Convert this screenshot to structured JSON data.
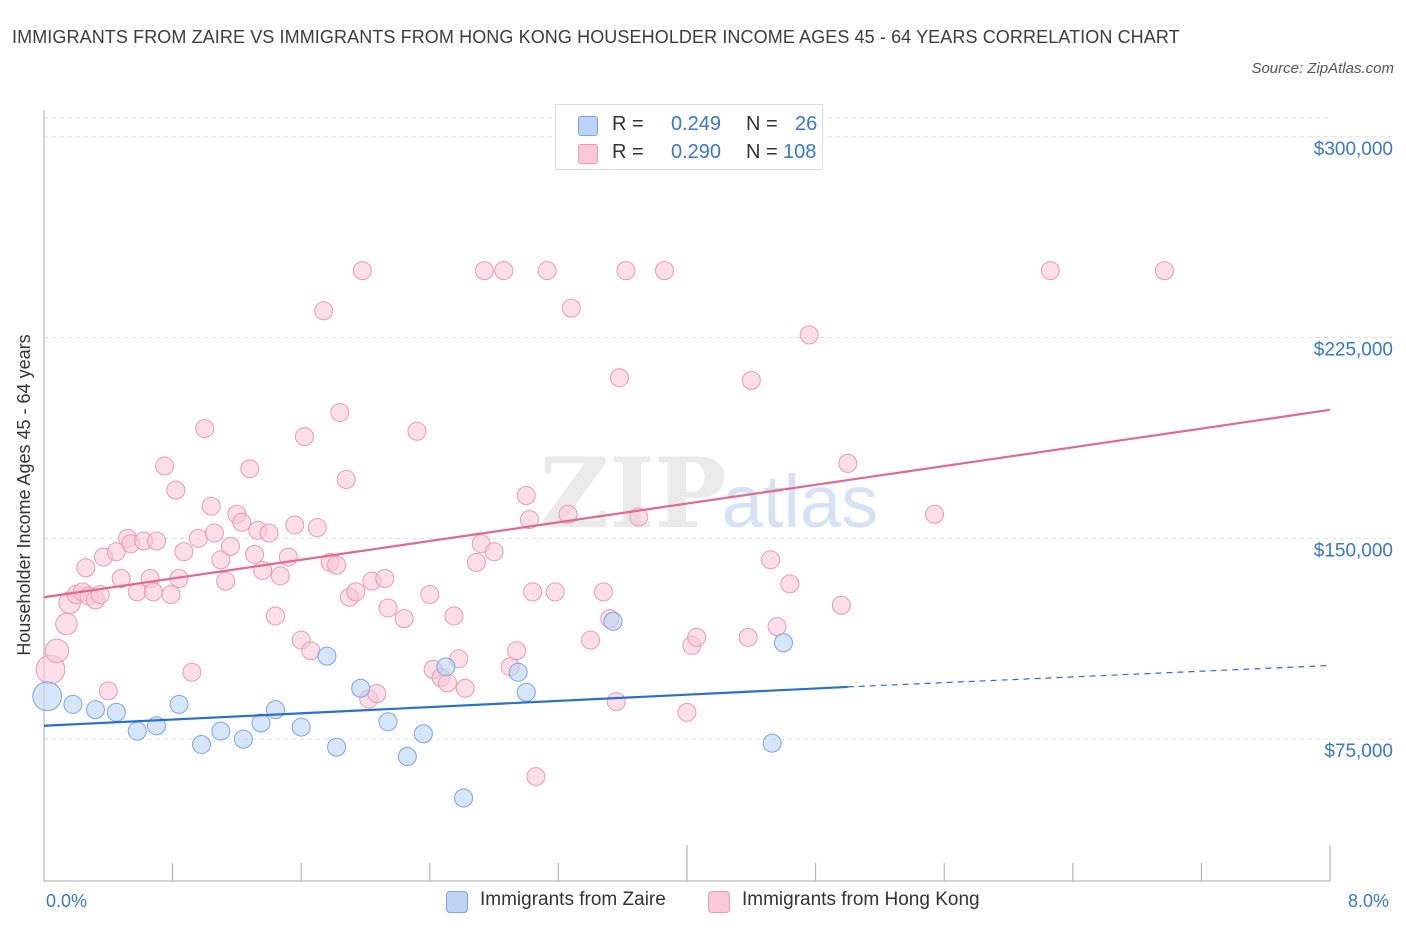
{
  "title": "IMMIGRANTS FROM ZAIRE VS IMMIGRANTS FROM HONG KONG HOUSEHOLDER INCOME AGES 45 - 64 YEARS CORRELATION CHART",
  "source": "Source: ZipAtlas.com",
  "watermark": {
    "zip": "ZIP",
    "atlas": "atlas"
  },
  "legend": {
    "zaire": {
      "r_label": "R = ",
      "r_value": "0.249",
      "n_label": "N = ",
      "n_value": "26"
    },
    "hongkong": {
      "r_label": "R = ",
      "r_value": "0.290",
      "n_label": "N = ",
      "n_value": "108"
    }
  },
  "bottom_legend": {
    "zaire": "Immigrants from Zaire",
    "hongkong": "Immigrants from Hong Kong"
  },
  "axis": {
    "x_min_label": "0.0%",
    "x_max_label": "8.0%"
  },
  "colors": {
    "zaire_fill": "#bcd3f5",
    "zaire_stroke": "#7aa6e3",
    "zaire_line": "#2a6fcb",
    "hk_fill": "#f9c8d7",
    "hk_stroke": "#ec9ab4",
    "hk_line": "#e0698f",
    "tick_label": "#3b78c4",
    "grid": "#dddddd"
  },
  "chart_data": {
    "type": "scatter",
    "title": "IMMIGRANTS FROM ZAIRE VS IMMIGRANTS FROM HONG KONG HOUSEHOLDER INCOME AGES 45 - 64 YEARS CORRELATION CHART",
    "xlabel": "",
    "ylabel": "Householder Income Ages 45 - 64 years",
    "xlim": [
      0,
      8
    ],
    "ylim": [
      22000,
      310000
    ],
    "y_ticks": [
      75000,
      150000,
      225000,
      300000
    ],
    "y_tick_labels": [
      "$75,000",
      "$150,000",
      "$225,000",
      "$300,000"
    ],
    "grid": true,
    "legend_position": "top-center",
    "series": [
      {
        "name": "Immigrants from Zaire",
        "r": 0.249,
        "n": 26,
        "trend": {
          "x": [
            0,
            5.0
          ],
          "y": [
            80000,
            94500
          ],
          "dashed_to": [
            8.0,
            102500
          ]
        },
        "points": [
          [
            0.02,
            91000,
            1.6
          ],
          [
            0.18,
            88000,
            1
          ],
          [
            0.32,
            86000,
            1
          ],
          [
            0.45,
            85000,
            1
          ],
          [
            0.58,
            78000,
            1
          ],
          [
            0.7,
            80000,
            1
          ],
          [
            0.84,
            88000,
            1
          ],
          [
            0.98,
            73000,
            1
          ],
          [
            1.1,
            78000,
            1
          ],
          [
            1.24,
            75000,
            1
          ],
          [
            1.35,
            81000,
            1
          ],
          [
            1.44,
            86000,
            1
          ],
          [
            1.6,
            79500,
            1
          ],
          [
            1.76,
            106000,
            1
          ],
          [
            1.82,
            72000,
            1
          ],
          [
            1.97,
            94000,
            1
          ],
          [
            2.14,
            81500,
            1
          ],
          [
            2.26,
            68500,
            1
          ],
          [
            2.36,
            77000,
            1
          ],
          [
            2.5,
            102000,
            1
          ],
          [
            2.61,
            53000,
            1
          ],
          [
            2.95,
            100000,
            1
          ],
          [
            3.0,
            92500,
            1
          ],
          [
            3.54,
            119000,
            1
          ],
          [
            4.6,
            111000,
            1
          ],
          [
            4.53,
            73500,
            1
          ]
        ]
      },
      {
        "name": "Immigrants from Hong Kong",
        "r": 0.29,
        "n": 108,
        "trend": {
          "x": [
            0,
            8.0
          ],
          "y": [
            128000,
            198000
          ]
        },
        "points": [
          [
            0.04,
            101000,
            1.6
          ],
          [
            0.08,
            108000,
            1.3
          ],
          [
            0.14,
            118000,
            1.2
          ],
          [
            0.16,
            126000,
            1.2
          ],
          [
            0.2,
            129000,
            1
          ],
          [
            0.24,
            130000,
            1
          ],
          [
            0.26,
            139000,
            1
          ],
          [
            0.28,
            128500,
            1
          ],
          [
            0.32,
            127000,
            1
          ],
          [
            0.35,
            129000,
            1
          ],
          [
            0.37,
            143000,
            1
          ],
          [
            0.4,
            93000,
            1
          ],
          [
            0.45,
            145000,
            1
          ],
          [
            0.48,
            135000,
            1
          ],
          [
            0.52,
            150000,
            1
          ],
          [
            0.54,
            148000,
            1
          ],
          [
            0.58,
            130000,
            1
          ],
          [
            0.62,
            149000,
            1
          ],
          [
            0.66,
            135000,
            1
          ],
          [
            0.68,
            130000,
            1
          ],
          [
            0.7,
            149000,
            1
          ],
          [
            0.75,
            177000,
            1
          ],
          [
            0.79,
            129000,
            1
          ],
          [
            0.82,
            168000,
            1
          ],
          [
            0.84,
            135000,
            1
          ],
          [
            0.87,
            145000,
            1
          ],
          [
            0.92,
            100000,
            1
          ],
          [
            0.96,
            150000,
            1
          ],
          [
            1.0,
            191000,
            1
          ],
          [
            1.04,
            162000,
            1
          ],
          [
            1.06,
            152000,
            1
          ],
          [
            1.1,
            142000,
            1
          ],
          [
            1.13,
            134000,
            1
          ],
          [
            1.16,
            147000,
            1
          ],
          [
            1.2,
            159000,
            1
          ],
          [
            1.23,
            156000,
            1
          ],
          [
            1.28,
            176000,
            1
          ],
          [
            1.31,
            144000,
            1
          ],
          [
            1.33,
            153000,
            1
          ],
          [
            1.36,
            138000,
            1
          ],
          [
            1.4,
            152000,
            1
          ],
          [
            1.44,
            121000,
            1
          ],
          [
            1.47,
            136000,
            1
          ],
          [
            1.52,
            143000,
            1
          ],
          [
            1.56,
            155000,
            1
          ],
          [
            1.6,
            112000,
            1
          ],
          [
            1.62,
            188000,
            1
          ],
          [
            1.66,
            108000,
            1
          ],
          [
            1.7,
            154000,
            1
          ],
          [
            1.74,
            235000,
            1
          ],
          [
            1.78,
            141000,
            1
          ],
          [
            1.82,
            140000,
            1
          ],
          [
            1.84,
            197000,
            1
          ],
          [
            1.88,
            172000,
            1
          ],
          [
            1.9,
            128000,
            1
          ],
          [
            1.94,
            130000,
            1
          ],
          [
            1.98,
            250000,
            1
          ],
          [
            2.02,
            90000,
            1
          ],
          [
            2.04,
            134000,
            1
          ],
          [
            2.07,
            92000,
            1
          ],
          [
            2.12,
            135000,
            1
          ],
          [
            2.14,
            124000,
            1
          ],
          [
            2.24,
            120000,
            1
          ],
          [
            2.32,
            190000,
            1
          ],
          [
            2.4,
            129000,
            1
          ],
          [
            2.42,
            101000,
            1
          ],
          [
            2.47,
            98000,
            1
          ],
          [
            2.51,
            96000,
            1
          ],
          [
            2.55,
            121000,
            1
          ],
          [
            2.58,
            105000,
            1
          ],
          [
            2.62,
            94000,
            1
          ],
          [
            2.69,
            141000,
            1
          ],
          [
            2.72,
            148000,
            1
          ],
          [
            2.74,
            250000,
            1
          ],
          [
            2.8,
            145000,
            1
          ],
          [
            2.86,
            250000,
            1
          ],
          [
            2.9,
            102000,
            1
          ],
          [
            2.94,
            108000,
            1
          ],
          [
            3.0,
            166000,
            1
          ],
          [
            3.02,
            157000,
            1
          ],
          [
            3.04,
            130000,
            1
          ],
          [
            3.06,
            61000,
            1
          ],
          [
            3.13,
            250000,
            1
          ],
          [
            3.18,
            130000,
            1
          ],
          [
            3.26,
            159000,
            1
          ],
          [
            3.28,
            236000,
            1
          ],
          [
            3.4,
            112000,
            1
          ],
          [
            3.48,
            130000,
            1
          ],
          [
            3.52,
            120000,
            1
          ],
          [
            3.56,
            89000,
            1
          ],
          [
            3.58,
            210000,
            1
          ],
          [
            3.62,
            250000,
            1
          ],
          [
            3.7,
            158000,
            1
          ],
          [
            3.86,
            250000,
            1
          ],
          [
            4.0,
            85000,
            1
          ],
          [
            4.03,
            110000,
            1
          ],
          [
            4.06,
            113000,
            1
          ],
          [
            4.38,
            113000,
            1
          ],
          [
            4.4,
            209000,
            1
          ],
          [
            4.52,
            142000,
            1
          ],
          [
            4.56,
            117000,
            1
          ],
          [
            4.64,
            133000,
            1
          ],
          [
            4.76,
            226000,
            1
          ],
          [
            4.96,
            125000,
            1
          ],
          [
            5.0,
            178000,
            1
          ],
          [
            5.54,
            159000,
            1
          ],
          [
            6.26,
            250000,
            1
          ],
          [
            6.97,
            250000,
            1
          ]
        ]
      }
    ]
  }
}
